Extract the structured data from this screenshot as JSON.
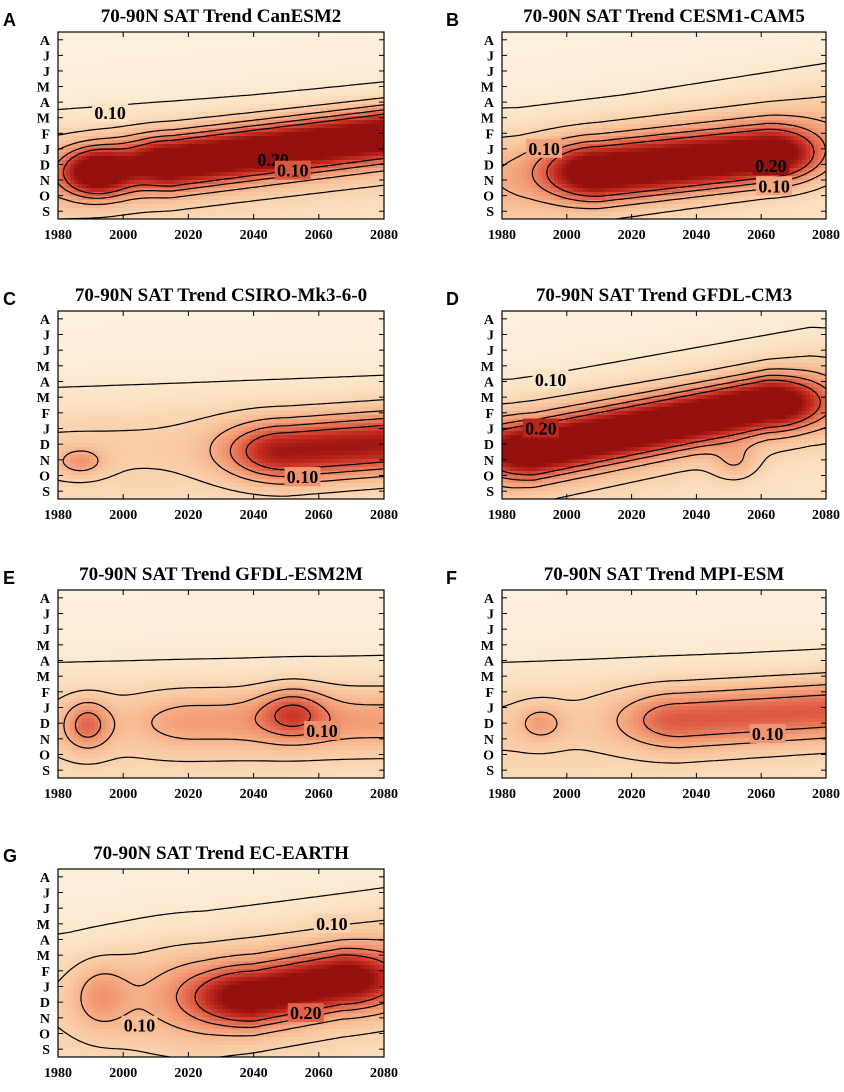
{
  "chart_data": [
    {
      "type": "heatmap",
      "panel_label": "A",
      "title": "70-90N SAT Trend CanESM2",
      "x_ticks": [
        1980,
        2000,
        2020,
        2040,
        2060,
        2080
      ],
      "xlim": [
        1980,
        2080
      ],
      "y_categories": [
        "S",
        "O",
        "N",
        "D",
        "J",
        "F",
        "M",
        "A",
        "M",
        "J",
        "J",
        "A"
      ],
      "contour_levels": [
        0.05,
        0.1,
        0.15,
        0.2,
        0.25
      ],
      "contour_labels": [
        {
          "text": "0.10",
          "x": 1996,
          "y": 6.3
        },
        {
          "text": "0.20",
          "x": 2046,
          "y": 3.3
        },
        {
          "text": "0.10",
          "x": 2052,
          "y": 2.6
        }
      ],
      "hotspots": [
        {
          "x0": 1992,
          "y0": 2.5,
          "x1": 1992,
          "y1": 2.5,
          "w": 0.3,
          "sx": 7,
          "sy": 1.0
        },
        {
          "x0": 2015,
          "y0": 3.1,
          "x1": 2080,
          "y1": 4.9,
          "w": 0.3,
          "sx": 10,
          "sy": 1.1
        },
        {
          "x0": 1980,
          "y0": 2.6,
          "x1": 2080,
          "y1": 4.5,
          "w": 0.1,
          "sx": 25,
          "sy": 2.2
        }
      ]
    },
    {
      "type": "heatmap",
      "panel_label": "B",
      "title": "70-90N SAT Trend CESM1-CAM5",
      "x_ticks": [
        1980,
        2000,
        2020,
        2040,
        2060,
        2080
      ],
      "xlim": [
        1980,
        2080
      ],
      "y_categories": [
        "S",
        "O",
        "N",
        "D",
        "J",
        "F",
        "M",
        "A",
        "M",
        "J",
        "J",
        "A"
      ],
      "contour_levels": [
        0.05,
        0.1,
        0.15,
        0.2,
        0.25
      ],
      "contour_labels": [
        {
          "text": "0.10",
          "x": 1993,
          "y": 4.0
        },
        {
          "text": "0.20",
          "x": 2063,
          "y": 2.9
        },
        {
          "text": "0.10",
          "x": 2064,
          "y": 1.6
        }
      ],
      "hotspots": [
        {
          "x0": 2010,
          "y0": 2.5,
          "x1": 2062,
          "y1": 3.6,
          "w": 0.3,
          "sx": 11,
          "sy": 1.2
        },
        {
          "x0": 1985,
          "y0": 2.4,
          "x1": 2080,
          "y1": 5.5,
          "w": 0.1,
          "sx": 25,
          "sy": 2.4
        }
      ]
    },
    {
      "type": "heatmap",
      "panel_label": "C",
      "title": "70-90N SAT Trend CSIRO-Mk3-6-0",
      "x_ticks": [
        1980,
        2000,
        2020,
        2040,
        2060,
        2080
      ],
      "xlim": [
        1980,
        2080
      ],
      "y_categories": [
        "S",
        "O",
        "N",
        "D",
        "J",
        "F",
        "M",
        "A",
        "M",
        "J",
        "J",
        "A"
      ],
      "contour_levels": [
        0.05,
        0.1,
        0.15,
        0.2,
        0.25
      ],
      "contour_labels": [
        {
          "text": "0.10",
          "x": 2055,
          "y": 0.9
        }
      ],
      "hotspots": [
        {
          "x0": 2050,
          "y0": 2.5,
          "x1": 2080,
          "y1": 3.0,
          "w": 0.23,
          "sx": 13,
          "sy": 1.3
        },
        {
          "x0": 1987,
          "y0": 1.9,
          "x1": 1987,
          "y1": 1.9,
          "w": 0.08,
          "sx": 5,
          "sy": 0.6
        },
        {
          "x0": 1980,
          "y0": 3.0,
          "x1": 2080,
          "y1": 4.0,
          "w": 0.06,
          "sx": 30,
          "sy": 2.5
        }
      ]
    },
    {
      "type": "heatmap",
      "panel_label": "D",
      "title": "70-90N SAT Trend GFDL-CM3",
      "x_ticks": [
        1980,
        2000,
        2020,
        2040,
        2060,
        2080
      ],
      "xlim": [
        1980,
        2080
      ],
      "y_categories": [
        "S",
        "O",
        "N",
        "D",
        "J",
        "F",
        "M",
        "A",
        "M",
        "J",
        "J",
        "A"
      ],
      "contour_levels": [
        0.05,
        0.1,
        0.15,
        0.2,
        0.25
      ],
      "contour_labels": [
        {
          "text": "0.10",
          "x": 1995,
          "y": 7.1
        },
        {
          "text": "0.20",
          "x": 1992,
          "y": 4.0
        }
      ],
      "hotspots": [
        {
          "x0": 1990,
          "y0": 2.6,
          "x1": 2062,
          "y1": 5.6,
          "w": 0.3,
          "sx": 11,
          "sy": 1.1
        },
        {
          "x0": 1983,
          "y0": 2.8,
          "x1": 2075,
          "y1": 6.2,
          "w": 0.12,
          "sx": 22,
          "sy": 2.4
        },
        {
          "x0": 2052,
          "y0": 1.8,
          "x1": 2052,
          "y1": 1.8,
          "w": 0.06,
          "sx": 5,
          "sy": 0.8
        }
      ]
    },
    {
      "type": "heatmap",
      "panel_label": "E",
      "title": "70-90N SAT Trend GFDL-ESM2M",
      "x_ticks": [
        1980,
        2000,
        2020,
        2040,
        2060,
        2080
      ],
      "xlim": [
        1980,
        2080
      ],
      "y_categories": [
        "S",
        "O",
        "N",
        "D",
        "J",
        "F",
        "M",
        "A",
        "M",
        "J",
        "J",
        "A"
      ],
      "contour_levels": [
        0.05,
        0.1,
        0.15,
        0.2,
        0.25
      ],
      "contour_labels": [
        {
          "text": "0.10",
          "x": 2061,
          "y": 2.5
        }
      ],
      "hotspots": [
        {
          "x0": 1989,
          "y0": 2.9,
          "x1": 1989,
          "y1": 2.9,
          "w": 0.12,
          "sx": 5,
          "sy": 1.1
        },
        {
          "x0": 2052,
          "y0": 3.7,
          "x1": 2052,
          "y1": 3.7,
          "w": 0.11,
          "sx": 7,
          "sy": 1.1
        },
        {
          "x0": 2022,
          "y0": 3.1,
          "x1": 2080,
          "y1": 3.1,
          "w": 0.07,
          "sx": 14,
          "sy": 1.3
        },
        {
          "x0": 1980,
          "y0": 3.2,
          "x1": 2080,
          "y1": 3.8,
          "w": 0.06,
          "sx": 30,
          "sy": 2.6
        }
      ]
    },
    {
      "type": "heatmap",
      "panel_label": "F",
      "title": "70-90N SAT Trend MPI-ESM",
      "x_ticks": [
        1980,
        2000,
        2020,
        2040,
        2060,
        2080
      ],
      "xlim": [
        1980,
        2080
      ],
      "y_categories": [
        "S",
        "O",
        "N",
        "D",
        "J",
        "F",
        "M",
        "A",
        "M",
        "J",
        "J",
        "A"
      ],
      "contour_levels": [
        0.05,
        0.1,
        0.15,
        0.2,
        0.25
      ],
      "contour_labels": [
        {
          "text": "0.10",
          "x": 2062,
          "y": 2.3
        }
      ],
      "hotspots": [
        {
          "x0": 2035,
          "y0": 3.2,
          "x1": 2080,
          "y1": 3.8,
          "w": 0.14,
          "sx": 13,
          "sy": 1.3
        },
        {
          "x0": 1992,
          "y0": 3.0,
          "x1": 1992,
          "y1": 3.0,
          "w": 0.07,
          "sx": 5,
          "sy": 0.8
        },
        {
          "x0": 1980,
          "y0": 3.2,
          "x1": 2080,
          "y1": 4.2,
          "w": 0.06,
          "sx": 30,
          "sy": 2.6
        }
      ]
    },
    {
      "type": "heatmap",
      "panel_label": "G",
      "title": "70-90N SAT Trend EC-EARTH",
      "x_ticks": [
        1980,
        2000,
        2020,
        2040,
        2060,
        2080
      ],
      "xlim": [
        1980,
        2080
      ],
      "y_categories": [
        "S",
        "O",
        "N",
        "D",
        "J",
        "F",
        "M",
        "A",
        "M",
        "J",
        "J",
        "A"
      ],
      "contour_levels": [
        0.05,
        0.1,
        0.15,
        0.2,
        0.25
      ],
      "contour_labels": [
        {
          "text": "0.10",
          "x": 2064,
          "y": 8.0
        },
        {
          "text": "0.10",
          "x": 2005,
          "y": 1.5
        },
        {
          "text": "0.20",
          "x": 2056,
          "y": 2.3
        }
      ],
      "hotspots": [
        {
          "x0": 2040,
          "y0": 3.3,
          "x1": 2067,
          "y1": 4.4,
          "w": 0.24,
          "sx": 12,
          "sy": 1.2
        },
        {
          "x0": 2025,
          "y0": 3.5,
          "x1": 2080,
          "y1": 5.5,
          "w": 0.08,
          "sx": 20,
          "sy": 2.6
        },
        {
          "x0": 1993,
          "y0": 3.4,
          "x1": 1993,
          "y1": 3.4,
          "w": 0.07,
          "sx": 6,
          "sy": 1.5
        },
        {
          "x0": 1980,
          "y0": 3.5,
          "x1": 2080,
          "y1": 5.0,
          "w": 0.05,
          "sx": 30,
          "sy": 3.0
        }
      ]
    }
  ],
  "colors": {
    "scale": [
      "#fdf3e3",
      "#fbe1c1",
      "#f8c49c",
      "#f29a73",
      "#e06148",
      "#c42a1f",
      "#94110f"
    ],
    "contour": "#000000",
    "axis": "#000000"
  }
}
